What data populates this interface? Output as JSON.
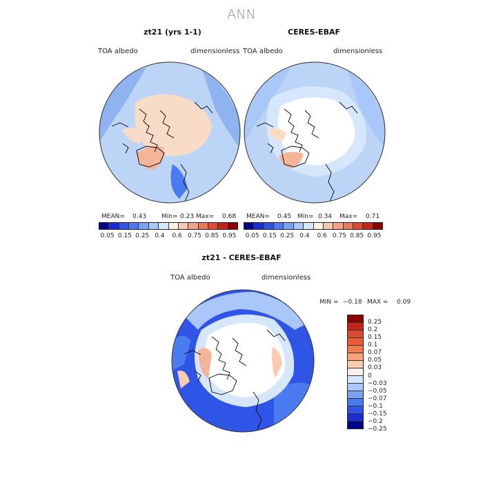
{
  "figure": {
    "title": "ANN"
  },
  "panels": [
    {
      "title": "zt21 (yrs 1-1)",
      "variable": "TOA albedo",
      "units": "dimensionless",
      "mean_label": "MEAN=",
      "mean": "0.43",
      "min_label": "Min=",
      "min": "0.23",
      "max_label": "Max=",
      "max": "0.68"
    },
    {
      "title": "CERES-EBAF",
      "variable": "TOA albedo",
      "units": "dimensionless",
      "mean_label": "MEAN=",
      "mean": "0.45",
      "min_label": "Min=",
      "min": "0.34",
      "max_label": "Max=",
      "max": "0.71"
    }
  ],
  "diff_panel": {
    "title": "zt21 - CERES-EBAF",
    "variable": "TOA albedo",
    "units": "dimensionless",
    "min_label": "MIN =",
    "min": "−0.18",
    "max_label": "MAX =",
    "max": "0.09"
  },
  "colorbar_abs": {
    "colors": [
      "#00008b",
      "#1a2ecf",
      "#2f55e6",
      "#4a7bf0",
      "#7aa3f5",
      "#a9c7f8",
      "#d6e6fb",
      "#fdf0e8",
      "#f7c9b0",
      "#f1a287",
      "#ea7a5e",
      "#dc4a33",
      "#c0271a",
      "#8b0000"
    ],
    "ticks": [
      "0.05",
      "0.15",
      "0.25",
      "0.4",
      "0.6",
      "0.75",
      "0.85",
      "0.95"
    ]
  },
  "colorbar_diff": {
    "colors_top_to_bottom": [
      "#8b0000",
      "#c0271a",
      "#dc4a33",
      "#ea5a35",
      "#f27a4a",
      "#f7a27a",
      "#fbcbb0",
      "#fdf0e8",
      "#d6e6fb",
      "#a9c7f8",
      "#7aa3f5",
      "#4a7bf0",
      "#2f55e6",
      "#1a2ecf",
      "#00008b"
    ],
    "ticks": [
      "0.25",
      "0.2",
      "0.15",
      "0.1",
      "0.07",
      "0.05",
      "0.03",
      "0",
      "−0.03",
      "−0.05",
      "−0.07",
      "−0.1",
      "−0.15",
      "−0.2",
      "−0.25"
    ]
  },
  "map_colors": {
    "ocean_low": "#bcd5f7",
    "ocean_mid": "#8fb3f1",
    "ocean_deep": "#2a5fe0",
    "land_high": "#f9dcc8",
    "ice": "#ffffff",
    "positive": "#f3b497",
    "coast": "#000000"
  }
}
